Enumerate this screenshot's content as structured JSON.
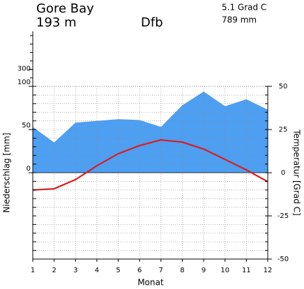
{
  "chart_data": {
    "type": "climate",
    "station": "Gore Bay",
    "elevation": "193 m",
    "climate_class": "Dfb",
    "mean_temp": "5.1 Grad C",
    "annual_precip": "789 mm",
    "xlabel": "Monat",
    "ylabel": "Niederschlag [mm]",
    "y2label": "Temperatur [Grad C]",
    "x": [
      1,
      2,
      3,
      4,
      5,
      6,
      7,
      8,
      9,
      10,
      11,
      12
    ],
    "xlim": [
      1,
      12
    ],
    "xticks": [
      1,
      2,
      3,
      4,
      5,
      6,
      7,
      8,
      9,
      10,
      11,
      12
    ],
    "series": [
      {
        "type": "area",
        "color": "#4d9ff2",
        "values": [
          53,
          35,
          58,
          60,
          62,
          61,
          53,
          78,
          94,
          77,
          85,
          73
        ]
      },
      {
        "type": "line",
        "axis": "y2",
        "color": "#d81e1e",
        "values": [
          -10,
          -9.3,
          -4,
          4,
          11,
          15.7,
          19,
          17.7,
          13.7,
          7.7,
          1.6,
          -5.2
        ]
      }
    ],
    "ylim": [
      -100,
      100
    ],
    "yticks": [
      0,
      50,
      100
    ],
    "ylim_upper": [
      100,
      750
    ],
    "yticks_upper": [
      300
    ],
    "y2lim": [
      -50,
      50
    ],
    "y2ticks": [
      -50,
      -25,
      0,
      25,
      50
    ],
    "grid": true
  }
}
